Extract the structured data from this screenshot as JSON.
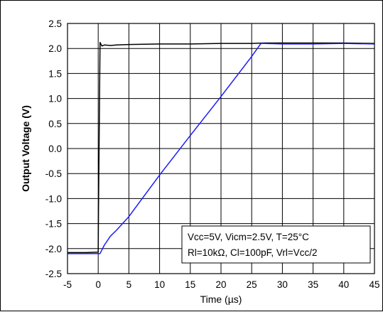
{
  "chart_data": {
    "type": "line",
    "xlabel": "Time (µs)",
    "ylabel": "Output Voltage (V)",
    "xlim": [
      -5,
      45
    ],
    "ylim": [
      -2.5,
      2.5
    ],
    "xticks": [
      -5,
      0,
      5,
      10,
      15,
      20,
      25,
      30,
      35,
      40,
      45
    ],
    "yticks": [
      -2.5,
      -2.0,
      -1.5,
      -1.0,
      -0.5,
      0.0,
      0.5,
      1.0,
      1.5,
      2.0,
      2.5
    ],
    "ytick_labels": [
      "-2.5",
      "-2.0",
      "-1.5",
      "-1.0",
      "-0.5",
      "0.0",
      "0.5",
      "1.0",
      "1.5",
      "2.0",
      "2.5"
    ],
    "grid": true,
    "annotation": {
      "lines": [
        "Vcc=5V, Vicm=2.5V, T=25°C",
        "Rl=10kΩ, Cl=100pF, Vrl=Vcc/2"
      ],
      "placement": "bottom-right"
    },
    "series": [
      {
        "color": "#000000",
        "x": [
          -5,
          -2,
          0,
          0.05,
          0.3,
          0.6,
          1,
          2,
          3,
          5,
          10,
          15,
          20,
          25,
          27,
          30,
          35,
          40,
          45
        ],
        "y": [
          -2.08,
          -2.08,
          -2.07,
          -1.2,
          2.12,
          2.05,
          2.07,
          2.06,
          2.07,
          2.08,
          2.09,
          2.09,
          2.1,
          2.1,
          2.11,
          2.11,
          2.11,
          2.11,
          2.1
        ]
      },
      {
        "color": "#1a1aff",
        "x": [
          -5,
          -2,
          0,
          0.3,
          1,
          2,
          3,
          5,
          10,
          15,
          20,
          25,
          26.5,
          27,
          30,
          35,
          40,
          45
        ],
        "y": [
          -2.1,
          -2.1,
          -2.1,
          -2.1,
          -1.93,
          -1.75,
          -1.63,
          -1.36,
          -0.53,
          0.26,
          1.04,
          1.84,
          2.1,
          2.1,
          2.09,
          2.09,
          2.1,
          2.09
        ]
      }
    ]
  }
}
